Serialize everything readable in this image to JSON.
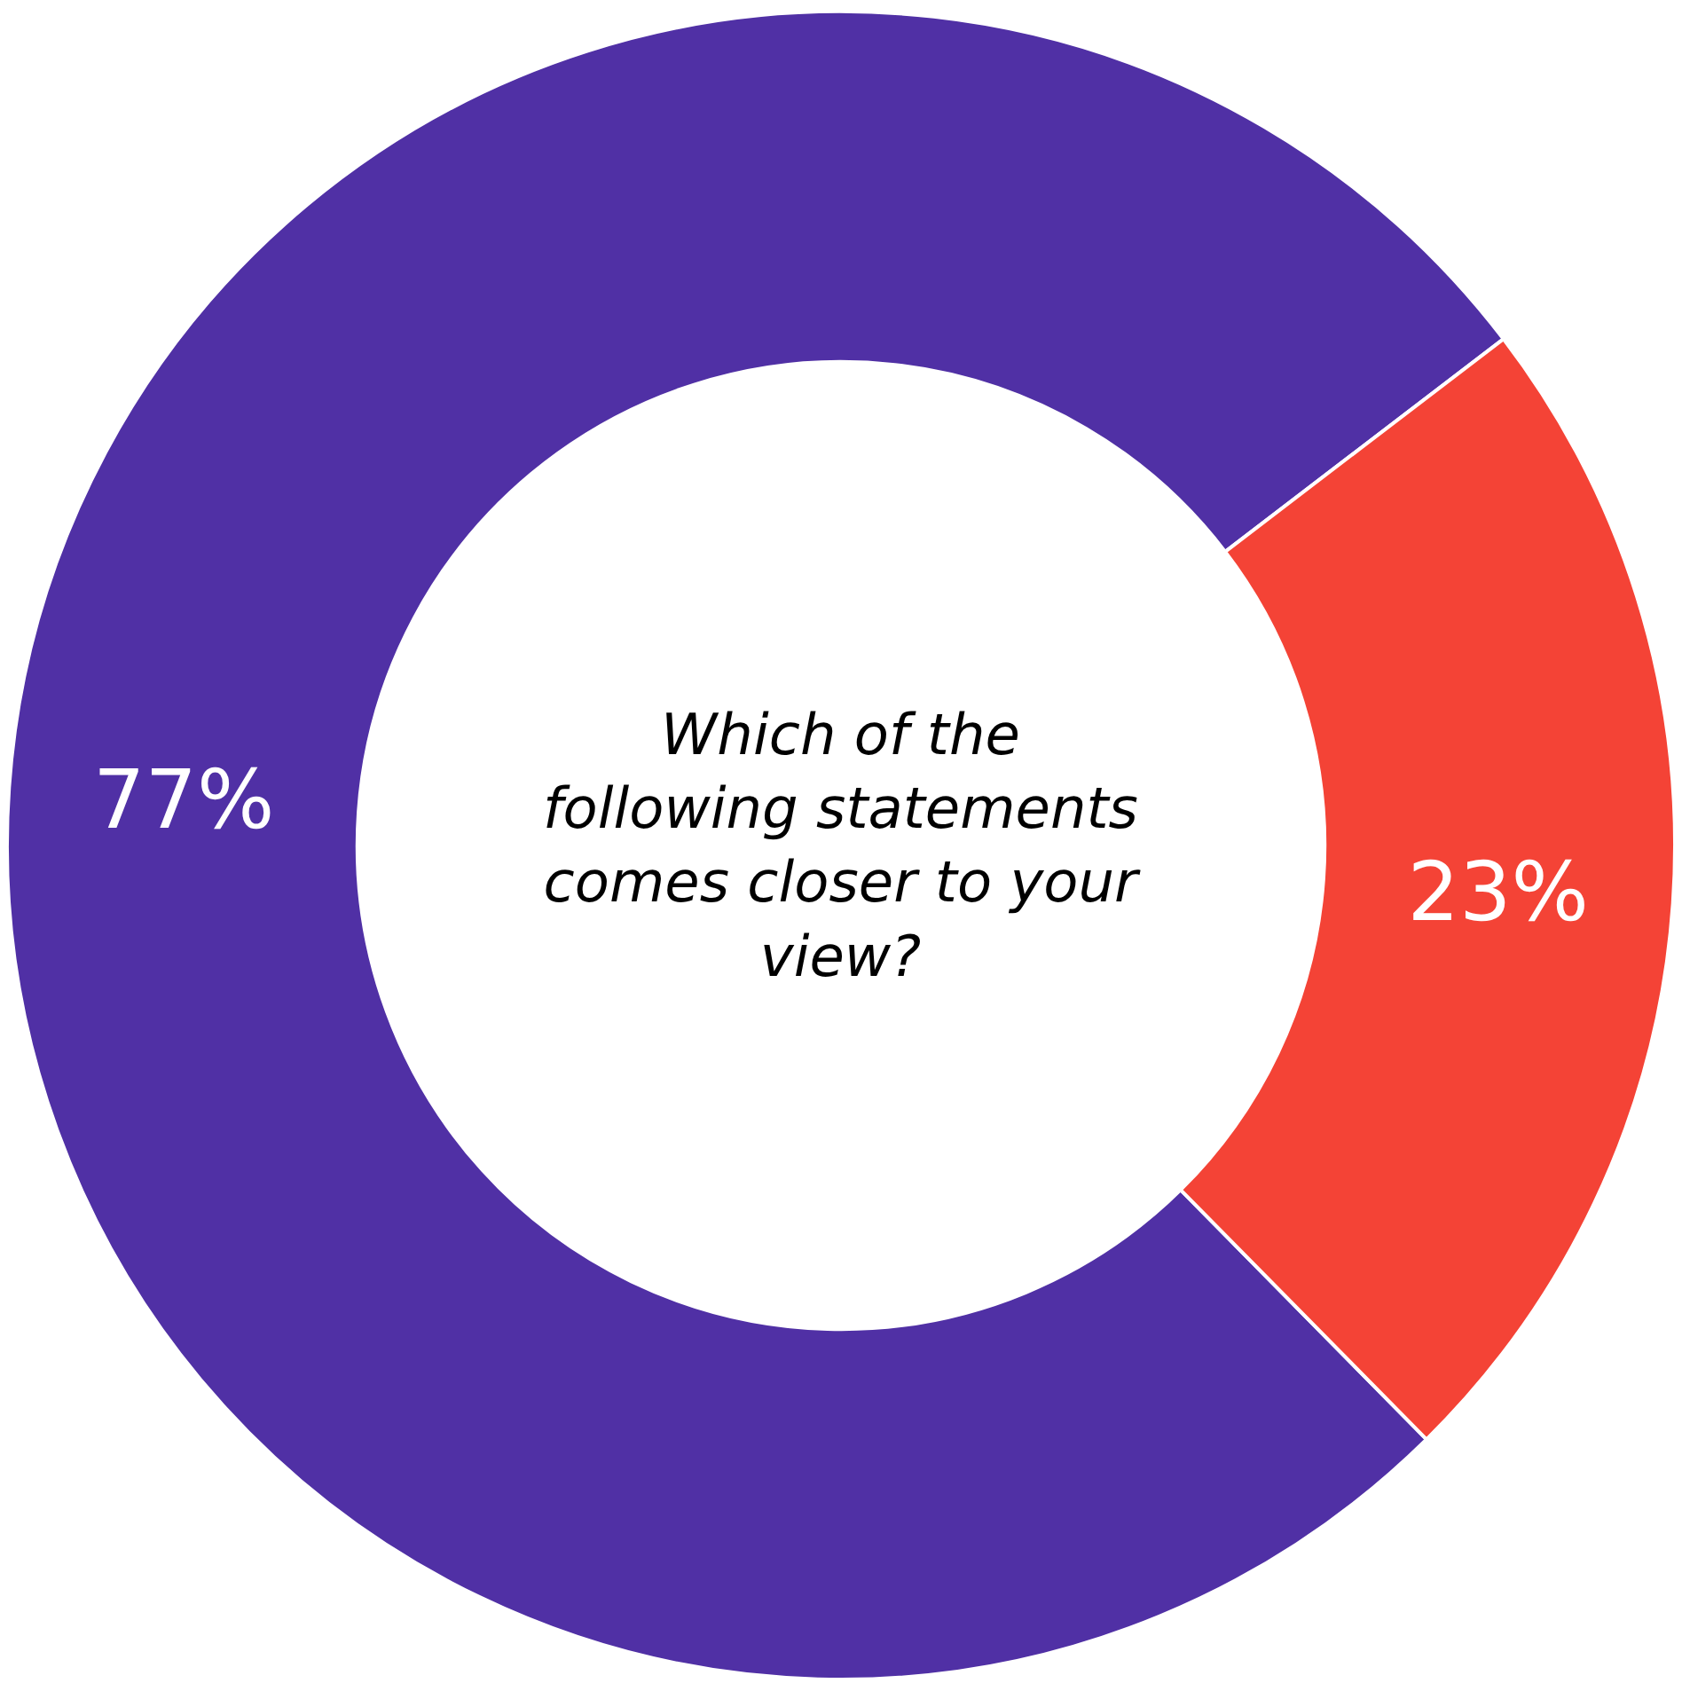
{
  "chart_data": {
    "type": "donut",
    "categories": [
      null,
      null
    ],
    "values": [
      77,
      23
    ],
    "colors": [
      "#5030a5",
      "#f44336"
    ],
    "value_labels": [
      "77%",
      "23%"
    ],
    "annotations": [
      "Which of the following statements comes closer to your view?"
    ],
    "legend": false
  }
}
